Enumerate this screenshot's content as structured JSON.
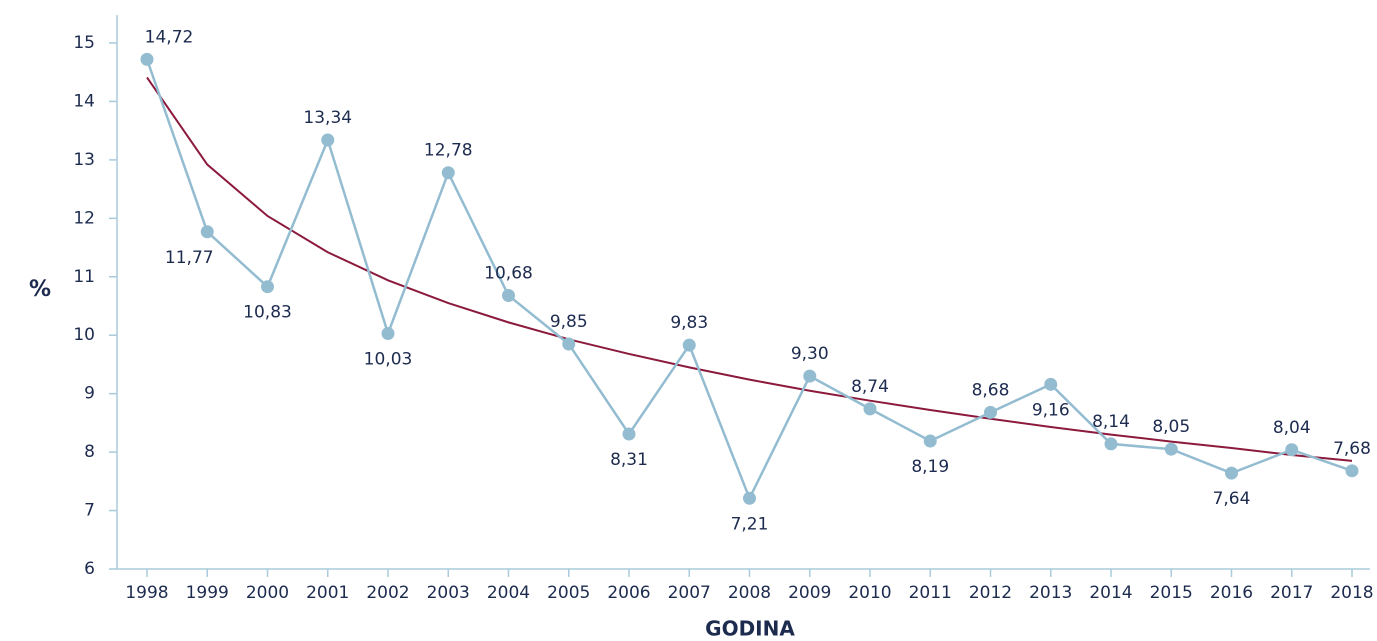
{
  "chart_data": {
    "type": "line",
    "x_label": "GODINA",
    "y_label": "%",
    "categories": [
      "1998",
      "1999",
      "2000",
      "2001",
      "2002",
      "2003",
      "2004",
      "2005",
      "2006",
      "2007",
      "2008",
      "2009",
      "2010",
      "2011",
      "2012",
      "2013",
      "2014",
      "2015",
      "2016",
      "2017",
      "2018"
    ],
    "series": [
      {
        "color": "#93bcd1",
        "values": [
          14.72,
          11.77,
          10.83,
          13.34,
          10.03,
          12.78,
          10.68,
          9.85,
          8.31,
          9.83,
          7.21,
          9.3,
          8.74,
          8.19,
          8.68,
          9.16,
          8.14,
          8.05,
          7.64,
          8.04,
          7.68
        ],
        "value_labels": [
          "14,72",
          "11,77",
          "10,83",
          "13,34",
          "10,03",
          "12,78",
          "10,68",
          "9,85",
          "8,31",
          "9,83",
          "7,21",
          "9,30",
          "8,74",
          "8,19",
          "8,68",
          "9,16",
          "8,14",
          "8,05",
          "7,64",
          "8,04",
          "7,68"
        ]
      },
      {
        "color": "#8b1a3c",
        "values": [
          14.41,
          12.92,
          12.04,
          11.42,
          10.94,
          10.55,
          10.22,
          9.93,
          9.68,
          9.45,
          9.24,
          9.05,
          8.88,
          8.72,
          8.57,
          8.43,
          8.3,
          8.18,
          8.07,
          7.95,
          7.85
        ]
      }
    ],
    "ylim": [
      6,
      15
    ],
    "yticks": [
      6,
      7,
      8,
      9,
      10,
      11,
      12,
      13,
      14,
      15
    ]
  }
}
